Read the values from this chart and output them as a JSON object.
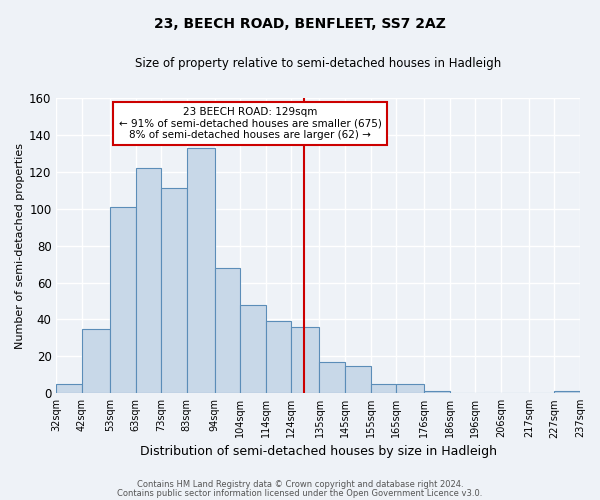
{
  "title": "23, BEECH ROAD, BENFLEET, SS7 2AZ",
  "subtitle": "Size of property relative to semi-detached houses in Hadleigh",
  "xlabel": "Distribution of semi-detached houses by size in Hadleigh",
  "ylabel": "Number of semi-detached properties",
  "bin_labels": [
    "32sqm",
    "42sqm",
    "53sqm",
    "63sqm",
    "73sqm",
    "83sqm",
    "94sqm",
    "104sqm",
    "114sqm",
    "124sqm",
    "135sqm",
    "145sqm",
    "155sqm",
    "165sqm",
    "176sqm",
    "186sqm",
    "196sqm",
    "206sqm",
    "217sqm",
    "227sqm",
    "237sqm"
  ],
  "bar_heights": [
    5,
    35,
    101,
    122,
    111,
    133,
    68,
    48,
    39,
    36,
    17,
    15,
    5,
    5,
    1,
    0,
    0,
    0,
    0,
    1
  ],
  "bar_color": "#c8d8e8",
  "bar_edge_color": "#5b8db8",
  "vline_x": 129,
  "vline_color": "#cc0000",
  "annotation_title": "23 BEECH ROAD: 129sqm",
  "annotation_line1": "← 91% of semi-detached houses are smaller (675)",
  "annotation_line2": "8% of semi-detached houses are larger (62) →",
  "annotation_box_edge": "#cc0000",
  "footer1": "Contains HM Land Registry data © Crown copyright and database right 2024.",
  "footer2": "Contains public sector information licensed under the Open Government Licence v3.0.",
  "ylim": [
    0,
    160
  ],
  "bin_edges": [
    32,
    42,
    53,
    63,
    73,
    83,
    94,
    104,
    114,
    124,
    135,
    145,
    155,
    165,
    176,
    186,
    196,
    206,
    217,
    227,
    237
  ],
  "background_color": "#eef2f7",
  "grid_color": "#ffffff"
}
